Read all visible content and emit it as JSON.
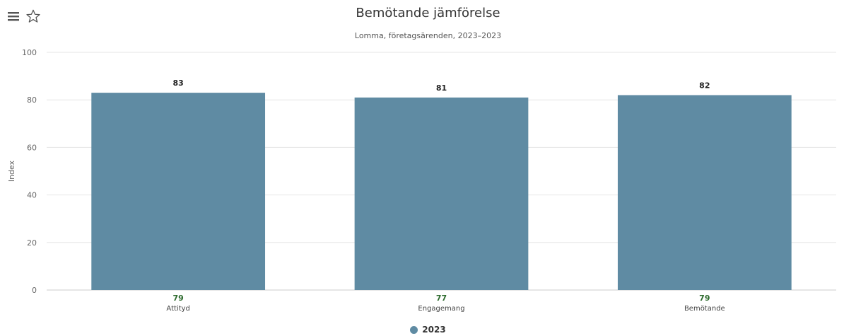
{
  "toolbar": {
    "menu_icon": "hamburger-menu-icon",
    "favorite_icon": "star-outline-icon"
  },
  "colors": {
    "bar": "#5f8ba3",
    "grid": "#e6e6e6",
    "axis_text": "#666666",
    "label_text": "#222222",
    "secondary_value": "#2e6b2e"
  },
  "chart_data": {
    "type": "bar",
    "title": "Bemötande jämförelse",
    "subtitle": "Lomma, företagsärenden, 2023–2023",
    "xlabel": "",
    "ylabel": "Index",
    "ylim": [
      0,
      100
    ],
    "yticks": [
      0,
      20,
      40,
      60,
      80,
      100
    ],
    "categories": [
      "Attityd",
      "Engagemang",
      "Bemötande"
    ],
    "series": [
      {
        "name": "2023",
        "values": [
          83,
          81,
          82
        ],
        "color": "#5f8ba3"
      }
    ],
    "secondary_values": [
      79,
      77,
      79
    ],
    "grid": true,
    "legend_placement": "bottom-center"
  }
}
